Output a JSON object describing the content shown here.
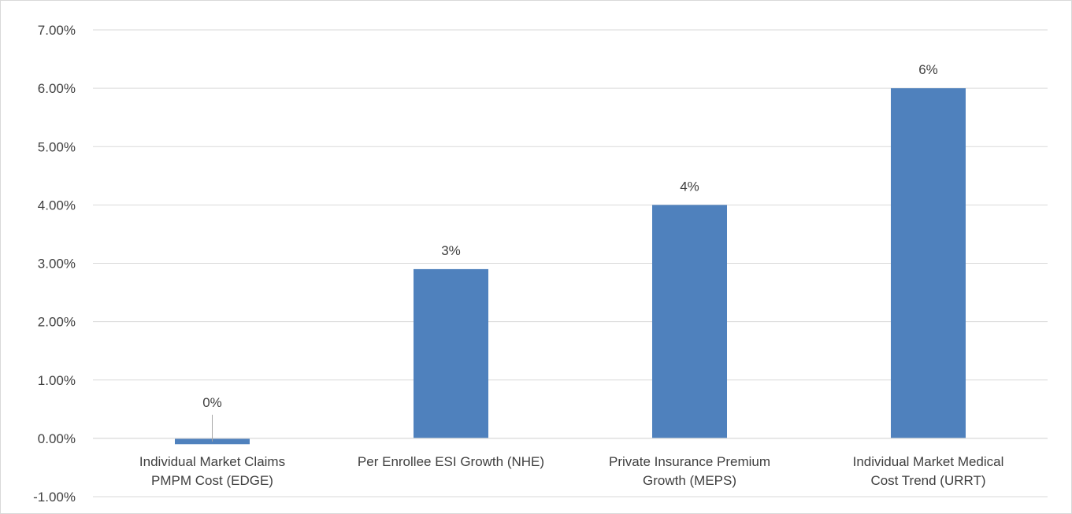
{
  "chart_data": {
    "type": "bar",
    "categories": [
      [
        "Individual Market Claims",
        "PMPM Cost  (EDGE)"
      ],
      [
        "Per Enrollee ESI Growth (NHE)"
      ],
      [
        "Private Insurance  Premium",
        "Growth (MEPS)"
      ],
      [
        "Individual Market Medical",
        "Cost Trend (URRT)"
      ]
    ],
    "values": [
      -0.1,
      2.9,
      4.0,
      6.0
    ],
    "data_labels": [
      "0%",
      "3%",
      "4%",
      "6%"
    ],
    "ylim": [
      -1,
      7
    ],
    "yticks": [
      -1,
      0,
      1,
      2,
      3,
      4,
      5,
      6,
      7
    ],
    "ytick_labels": [
      "-1.00%",
      "0.00%",
      "1.00%",
      "2.00%",
      "3.00%",
      "4.00%",
      "5.00%",
      "6.00%",
      "7.00%"
    ],
    "grid": true,
    "legend": "none",
    "colors": {
      "bar": "#4F81BD",
      "grid": "#D9D9D9",
      "text": "#404040",
      "border": "#D9D9D9"
    }
  }
}
